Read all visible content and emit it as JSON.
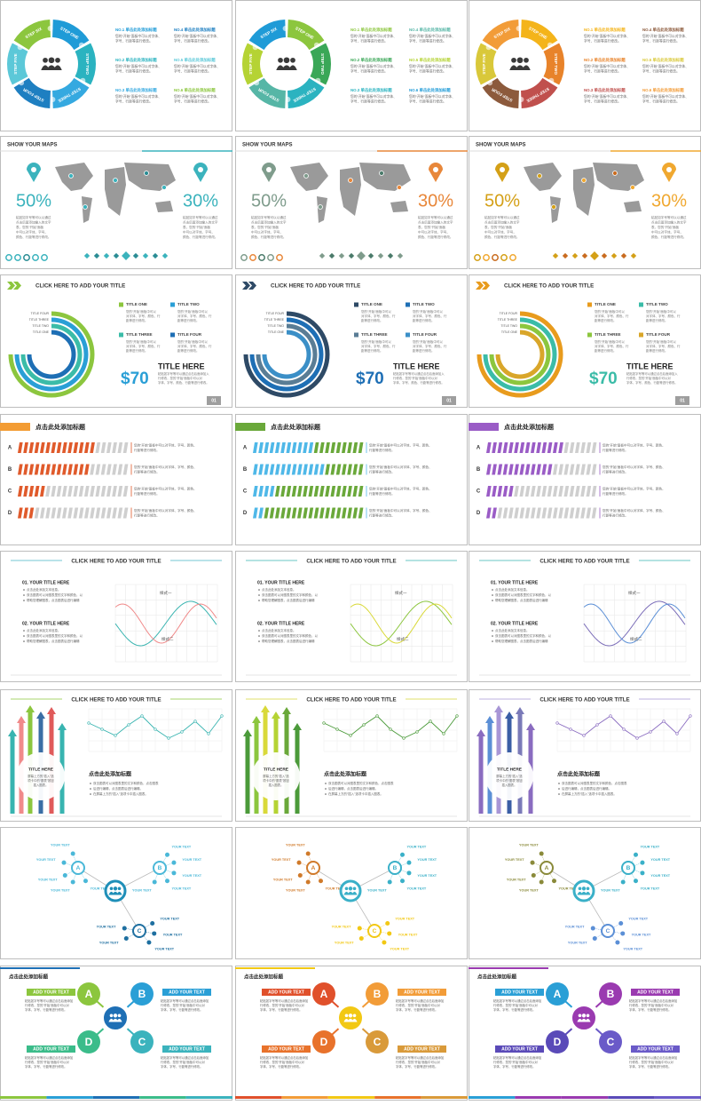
{
  "slides": [
    {
      "kind": "cycle",
      "steps": [
        "STEP ONE",
        "STEP TWO",
        "STEP THREE",
        "STEP FOUR",
        "STEP FIVE",
        "STEP SIX"
      ],
      "items": [
        "NO.1 单击此处添加标题",
        "NO.2 单击此处添加标题",
        "NO.3 单击此处添加标题",
        "NO.4 单击此处添加标题",
        "NO.5 单击此处添加标题",
        "NO.6 单击此处添加标题"
      ],
      "desc": [
        "您的“开始”面板中可以对字体、",
        "字号、行距等进行修改。"
      ],
      "colors": [
        [
          "#1f9bd7",
          "#2bb3c0",
          "#35a9e0",
          "#1e7fc1",
          "#5cc8d8",
          "#8cc63e"
        ],
        [
          "#8cc63e",
          "#3aa757",
          "#2bb3c0",
          "#56b6a6",
          "#b5d334",
          "#1f9bd7"
        ],
        [
          "#f4b41a",
          "#e8832a",
          "#c0504d",
          "#8c5a3c",
          "#d9c83a",
          "#f29c38"
        ]
      ]
    },
    {
      "kind": "maps",
      "title": "SHOW YOUR MAPS",
      "left": "50%",
      "right": "30%",
      "desc": [
        "粘贴如字号等可以以通过",
        "点击后面添加输入的文字",
        "表，您的“开始”面板",
        "中可以对字体、字号、",
        "颜色、行距等进行修改。"
      ],
      "colors": [
        [
          "#3bb3bd",
          "#3bb3bd",
          "#2a8c94"
        ],
        [
          "#7f9c8c",
          "#e8873a",
          "#4a7a6a"
        ],
        [
          "#d4a017",
          "#f0a830",
          "#c96b1f"
        ]
      ]
    },
    {
      "kind": "rings",
      "title": "CLICK HERE TO ADD YOUR TITLE",
      "ring_labels": [
        "TITLE FOUR",
        "TITLE THREE",
        "TITLE TWO",
        "TITLE ONE"
      ],
      "legend": [
        "TITLE ONE",
        "TITLE TWO",
        "TITLE THREE",
        "TITLE FOUR"
      ],
      "legend_desc": [
        "您的“开始”面板中可以",
        "对字体、字号、颜色、行",
        "距等进行修改。"
      ],
      "price": "$70",
      "heading": "TITLE HERE",
      "body": [
        "粘贴如字号等可以通过点击后面添加入",
        "行修改，您的“开始”面板中可以对",
        "字体、字号、颜色、行距等进行修改。"
      ],
      "page": "01",
      "colors": [
        [
          "#8cc63e",
          "#2a9fd6",
          "#3bbca8",
          "#1e6fb5"
        ],
        [
          "#2e4a66",
          "#1e6fb5",
          "#5a7d95",
          "#3b8fc7"
        ],
        [
          "#e89b1d",
          "#3bbca8",
          "#8cc63e",
          "#d9a62a"
        ]
      ]
    },
    {
      "kind": "bars",
      "title": "点击此处添加标题",
      "letters": [
        "A",
        "B",
        "C",
        "D"
      ],
      "values": [
        [
          70,
          65,
          25,
          15
        ],
        [
          55,
          65,
          20,
          10
        ],
        [
          70,
          60,
          25,
          10
        ]
      ],
      "desc": [
        "您的“开始”面板中可以对字体、字号、颜色、",
        "行距等进行修改。"
      ],
      "colors": [
        [
          "#e05a2b",
          "#cfcfcf",
          "#f39c33"
        ],
        [
          "#4fb8e8",
          "#6aa83a",
          "#6aa83a"
        ],
        [
          "#9a5cc6",
          "#cfcfcf",
          "#9a5cc6"
        ]
      ]
    },
    {
      "kind": "line",
      "title": "CLICK HERE TO ADD YOUR TITLE",
      "sections": [
        "01. YOUR TITLE HERE",
        "02. YOUR TITLE HERE"
      ],
      "bullets": [
        "点击此处添加文本信息。",
        "双击图表可以对图表里的文字和颜色，以",
        "帮助您理解图表，点击图表后进行编辑"
      ],
      "series": [
        "样式一",
        "样式二"
      ],
      "colors": [
        [
          "#38b4b0",
          "#f08a8a",
          "#45b5c4"
        ],
        [
          "#8cc63e",
          "#d9d93a",
          "#38b4b0"
        ],
        [
          "#7a6cb8",
          "#5b8fd6",
          "#38b4b0"
        ]
      ]
    },
    {
      "kind": "arrows",
      "title": "CLICK HERE TO ADD YOUR TITLE",
      "badge": "TITLE HERE",
      "badge_desc": [
        "屏幕上方的“插入”选",
        "项卡中的“图表”按钮",
        "插入图表。"
      ],
      "heading": "点击此处添加标题",
      "bullets": [
        "双击图表可以对图表里的文字和颜色，点击图表",
        "后进行编辑，点击图表后进行编辑。",
        "在屏幕上方的“插入”选项卡中插入图表。"
      ],
      "colors": [
        [
          "#38b4b0",
          "#f08a8a",
          "#8cc63e",
          "#3a6ea5",
          "#e05a5a"
        ],
        [
          "#4b9a3a",
          "#8cc63e",
          "#d9d93a",
          "#b5d334",
          "#6aa83a"
        ],
        [
          "#8a6cc0",
          "#5b8fd6",
          "#a896d6",
          "#3a5ea5",
          "#7a7ab8"
        ]
      ]
    },
    {
      "kind": "network",
      "nodes": [
        "A",
        "B",
        "C"
      ],
      "label": "YOUR TEXT",
      "colors": [
        [
          "#1f8fb8",
          "#4ab8d8",
          "#4ab8d8",
          "#1e6fa0"
        ],
        [
          "#3ab0c8",
          "#d07a2a",
          "#3ab0c8",
          "#f2c814"
        ],
        [
          "#3ab0c8",
          "#8a8a3a",
          "#3ab0c8",
          "#5b8fd6"
        ]
      ]
    },
    {
      "kind": "abcd",
      "title": "点击此处添加标题",
      "letters": [
        "A",
        "B",
        "C",
        "D"
      ],
      "label": "ADD YOUR TEXT",
      "desc": [
        "粘贴如字号等可以通过点击后面添加",
        "行修改，您的“开始”面板中可以对",
        "字体、字号、行距等进行修改。"
      ],
      "colors": [
        [
          "#8cc63e",
          "#2a9fd6",
          "#1e6fb5",
          "#3bbc8a",
          "#3bb3bd"
        ],
        [
          "#e0502b",
          "#f29c38",
          "#f2c814",
          "#e8722b",
          "#d99a3a"
        ],
        [
          "#2a9fd6",
          "#9a3ab0",
          "#9a3ab0",
          "#5a4ab8",
          "#6a5ac8"
        ]
      ]
    }
  ]
}
